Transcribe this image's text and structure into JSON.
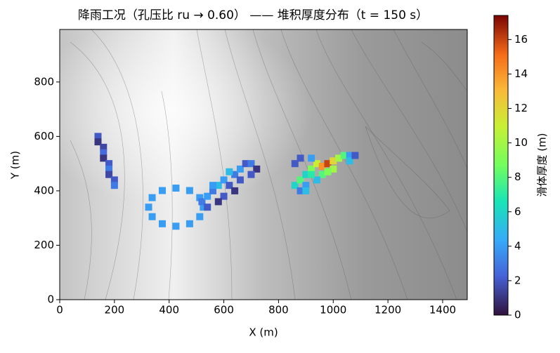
{
  "chart_data": {
    "type": "heatmap",
    "title": "降雨工况（孔压比 ru → 0.60） —— 堆积厚度分布（t = 150 s）",
    "xlabel": "X (m)",
    "ylabel": "Y (m)",
    "xlim": [
      0,
      1490
    ],
    "ylim": [
      0,
      993
    ],
    "xticks": [
      0,
      200,
      400,
      600,
      800,
      1000,
      1200,
      1400
    ],
    "yticks": [
      0,
      200,
      400,
      600,
      800
    ],
    "colorbar_label": "滑体厚度 (m)",
    "clim": [
      0,
      17.4
    ],
    "cticks": [
      0,
      2,
      4,
      6,
      8,
      10,
      12,
      14,
      16
    ],
    "colormap": "turbo",
    "cells": {
      "x": [
        140,
        140,
        160,
        160,
        160,
        180,
        180,
        180,
        200,
        200,
        525,
        512,
        475,
        425,
        375,
        338,
        325,
        338,
        375,
        425,
        475,
        512,
        520,
        540,
        560,
        580,
        600,
        620,
        640,
        660,
        680,
        700,
        720,
        600,
        640,
        660,
        580,
        540,
        700,
        620,
        560,
        860,
        880,
        880,
        900,
        920,
        940,
        960,
        980,
        1000,
        1020,
        1040,
        1060,
        1000,
        960,
        940,
        900,
        920,
        880,
        860,
        1060,
        1080,
        900,
        920,
        980
      ],
      "y": [
        600,
        580,
        560,
        540,
        520,
        500,
        480,
        460,
        440,
        420,
        340,
        375,
        401,
        410,
        401,
        375,
        340,
        305,
        279,
        270,
        279,
        305,
        360,
        380,
        400,
        420,
        440,
        420,
        460,
        480,
        500,
        500,
        480,
        380,
        400,
        440,
        360,
        340,
        460,
        470,
        420,
        420,
        440,
        400,
        460,
        480,
        500,
        490,
        500,
        510,
        520,
        530,
        530,
        480,
        460,
        440,
        420,
        520,
        520,
        500,
        510,
        530,
        400,
        460,
        470
      ],
      "values": [
        2,
        1,
        1.5,
        2.5,
        1,
        2,
        3,
        1.5,
        2,
        3,
        4,
        4,
        4,
        4,
        4,
        4,
        4,
        4,
        4,
        4,
        4,
        4,
        3,
        4,
        3,
        5,
        4,
        2,
        3,
        4,
        2,
        3,
        1,
        2,
        1,
        2,
        1,
        2,
        2,
        5,
        4,
        6,
        8,
        3,
        6,
        9,
        11,
        14,
        16,
        12,
        10,
        8,
        4,
        10,
        8,
        5,
        4,
        4,
        2,
        2,
        5,
        2,
        5,
        7,
        9
      ]
    }
  }
}
